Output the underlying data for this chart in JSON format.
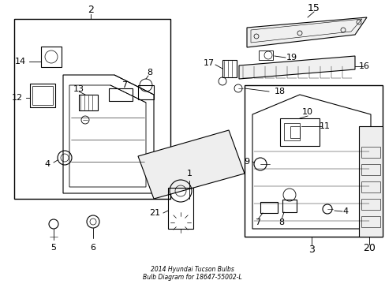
{
  "bg_color": "#ffffff",
  "title_line1": "2014 Hyundai Tucson Bulbs",
  "title_line2": "Bulb Diagram for 18647-55002-L",
  "lc": "#000000"
}
